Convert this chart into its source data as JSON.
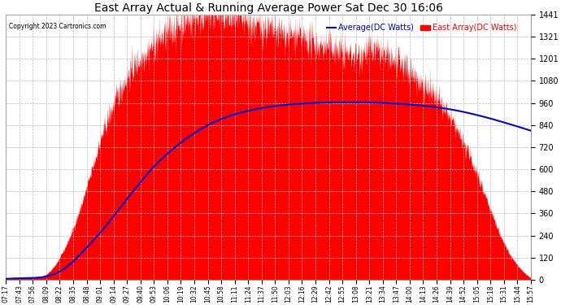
{
  "title": "East Array Actual & Running Average Power Sat Dec 30 16:06",
  "copyright": "Copyright 2023 Cartronics.com",
  "legend_average": "Average(DC Watts)",
  "legend_east": "East Array(DC Watts)",
  "ymin": 0.0,
  "ymax": 1440.7,
  "yticks": [
    0.0,
    120.1,
    240.1,
    360.2,
    480.2,
    600.3,
    720.3,
    840.4,
    960.4,
    1080.5,
    1200.6,
    1320.6,
    1440.7
  ],
  "background_color": "#ffffff",
  "grid_color": "#bbbbbb",
  "fill_color": "#ff0000",
  "line_color": "#0000cc",
  "title_color": "#000000",
  "copyright_color": "#000000",
  "legend_avg_color": "#0000cc",
  "legend_east_color": "#ff0000",
  "time_labels": [
    "07:17",
    "07:43",
    "07:56",
    "08:09",
    "08:22",
    "08:35",
    "08:48",
    "09:01",
    "09:14",
    "09:27",
    "09:40",
    "09:53",
    "10:06",
    "10:19",
    "10:32",
    "10:45",
    "10:58",
    "11:11",
    "11:24",
    "11:37",
    "11:50",
    "12:03",
    "12:16",
    "12:29",
    "12:42",
    "12:55",
    "13:08",
    "13:21",
    "13:34",
    "13:47",
    "14:00",
    "14:13",
    "14:26",
    "14:39",
    "14:52",
    "15:05",
    "15:18",
    "15:31",
    "15:44",
    "15:57"
  ],
  "east_array": [
    5,
    8,
    12,
    30,
    120,
    280,
    500,
    750,
    950,
    1100,
    1200,
    1280,
    1340,
    1390,
    1420,
    1440,
    1430,
    1410,
    1390,
    1370,
    1350,
    1330,
    1310,
    1280,
    1260,
    1240,
    1220,
    1250,
    1220,
    1180,
    1130,
    1060,
    980,
    880,
    740,
    580,
    380,
    200,
    80,
    10
  ],
  "avg_line": [
    5,
    8,
    10,
    18,
    45,
    100,
    175,
    255,
    345,
    440,
    530,
    615,
    685,
    745,
    797,
    840,
    873,
    899,
    918,
    933,
    944,
    952,
    957,
    961,
    963,
    964,
    964,
    963,
    961,
    957,
    952,
    946,
    937,
    926,
    912,
    895,
    876,
    855,
    833,
    810
  ]
}
